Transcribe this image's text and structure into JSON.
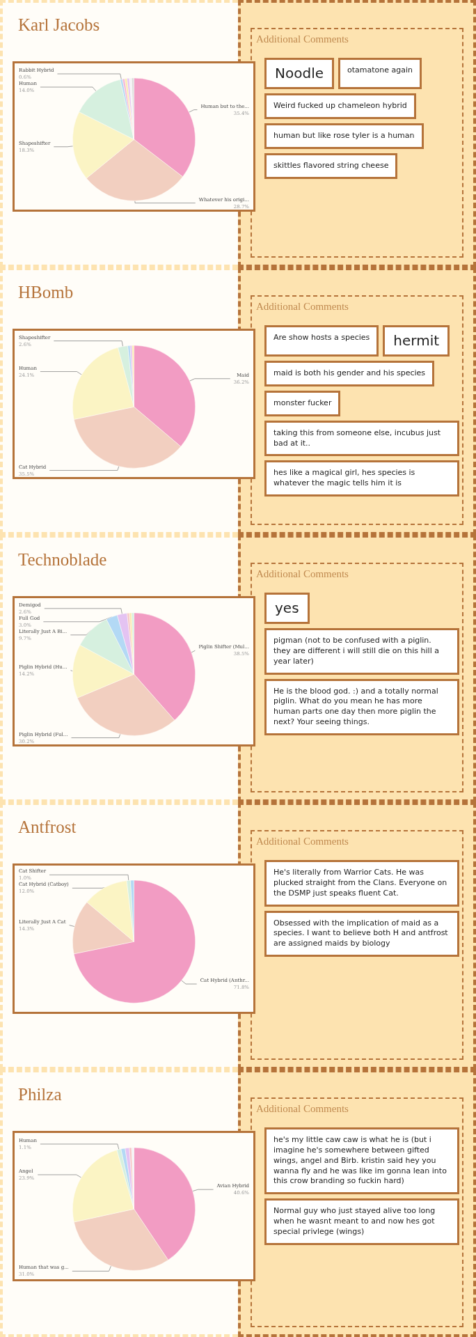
{
  "chart_data": [
    {
      "type": "pie",
      "title": "Karl Jacobs",
      "categories": [
        "Human but to the...",
        "Whatever his origi...",
        "Shapeshifter",
        "Human",
        "Rabbit Hybrid",
        null,
        null,
        null,
        null,
        null
      ],
      "values": [
        35.4,
        28.7,
        18.3,
        14.0,
        0.6,
        0.6,
        0.6,
        0.6,
        0.6,
        0.6
      ],
      "value_labels": [
        "35.4%",
        "28.7%",
        "18.3%",
        "14.0%",
        "0.6%",
        null,
        null,
        null,
        null,
        null
      ],
      "colors": [
        "#f29cc3",
        "#f2cfc0",
        "#fbf4c4",
        "#d6f0df",
        "#b3d9f5",
        "#f6b8d6",
        "#fbe9b0",
        "#e4c3f2",
        "#f3f3f6",
        "#dcdcdc"
      ],
      "legend": false,
      "annotations": [
        "Additional Comments",
        "Noodle",
        "otamatone again",
        "Weird fucked up chameleon hybrid",
        "human but like rose tyler is a human",
        "skittles flavored string cheese"
      ]
    },
    {
      "type": "pie",
      "title": "HBomb",
      "categories": [
        "Maid",
        "Cat Hybrid",
        "Human",
        "Shapeshifter",
        null,
        null,
        null
      ],
      "values": [
        36.2,
        35.5,
        24.1,
        2.6,
        0.6,
        0.5,
        0.5
      ],
      "value_labels": [
        "36.2%",
        "35.5%",
        "24.1%",
        "2.6%",
        null,
        null,
        null
      ],
      "colors": [
        "#f29cc3",
        "#f2cfc0",
        "#fbf4c4",
        "#d6f0df",
        "#b3d9f5",
        "#e4c3f2",
        "#fbe9b0"
      ],
      "legend": false,
      "annotations": [
        "Additional Comments",
        "Are show hosts a species",
        "hermit",
        "maid is both his gender and his species",
        "monster fucker",
        "taking this from someone else, incubus just bad at it..",
        "hes like a magical girl, hes species is whatever the magic tells him it is"
      ]
    },
    {
      "type": "pie",
      "title": "Technoblade",
      "categories": [
        "Piglin Shifter (Mul...",
        "Piglin Hybrid (Ful...",
        "Piglin Hybrid (Hu...",
        "Literally Just A Bi...",
        "Full God",
        "Demigod",
        null,
        null,
        null
      ],
      "values": [
        38.5,
        30.2,
        14.2,
        9.7,
        3.0,
        2.6,
        0.6,
        0.6,
        0.6
      ],
      "value_labels": [
        "38.5%",
        "30.2%",
        "14.2%",
        "9.7%",
        "3.0%",
        "2.6%",
        null,
        null,
        null
      ],
      "colors": [
        "#f29cc3",
        "#f2cfc0",
        "#fbf4c4",
        "#d6f0df",
        "#b3d9f5",
        "#e4c3f2",
        "#f6c6c6",
        "#fbe9b0",
        "#d6f0df"
      ],
      "legend": false,
      "annotations": [
        "Additional Comments",
        "yes",
        "pigman (not to be confused with a piglin. they are different i will still die on this hill a year later)",
        "He is the blood god. :) and a totally normal piglin. What do you mean he has more human parts one day then more piglin the next? Your seeing things."
      ]
    },
    {
      "type": "pie",
      "title": "Antfrost",
      "categories": [
        "Cat Hybrid (Anthr...",
        "Literally Just A Cat",
        "Cat Hybrid (Catboy)",
        "Cat Shifter",
        null
      ],
      "values": [
        71.8,
        14.3,
        12.0,
        1.0,
        0.9
      ],
      "value_labels": [
        "71.8%",
        "14.3%",
        "12.0%",
        "1.0%",
        null
      ],
      "colors": [
        "#f29cc3",
        "#f2cfc0",
        "#fbf4c4",
        "#d6f0df",
        "#b3d9f5"
      ],
      "legend": false,
      "annotations": [
        "Additional Comments",
        "He's literally from Warrior Cats. He was plucked straight from the Clans. Everyone on the DSMP just speaks fluent Cat.",
        "Obsessed with the implication of maid as a species. I want to believe both H and antfrost are assigned maids by biology"
      ]
    },
    {
      "type": "pie",
      "title": "Philza",
      "categories": [
        "Avian Hybrid",
        "Human that was g...",
        "Angel",
        "Human",
        null,
        null,
        null,
        null
      ],
      "values": [
        40.6,
        31.0,
        23.9,
        1.1,
        1.1,
        1.1,
        0.6,
        0.6
      ],
      "value_labels": [
        "40.6%",
        "31.0%",
        "23.9%",
        "1.1%",
        null,
        null,
        null,
        null
      ],
      "colors": [
        "#f29cc3",
        "#f2cfc0",
        "#fbf4c4",
        "#d6f0df",
        "#b3d9f5",
        "#e4c3f2",
        "#f6c6c6",
        "#f3f3f6"
      ],
      "legend": false,
      "annotations": [
        "Additional Comments",
        "he's my little caw caw is what he is (but i imagine he's somewhere between gifted wings, angel and Birb. kristin said hey you wanna fly and he was like im gonna lean into this crow branding so fuckin hard)",
        "Normal guy who just stayed alive too long when he wasnt meant to and now hes got special privlege (wings)"
      ]
    }
  ]
}
